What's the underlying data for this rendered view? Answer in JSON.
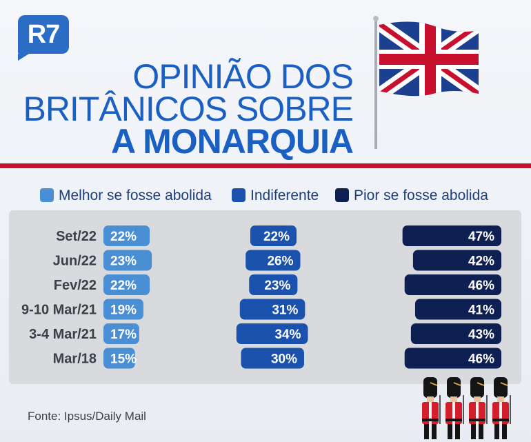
{
  "logo": {
    "text": "R7",
    "color": "#2b6cc4"
  },
  "title": {
    "line1": "OPINIÃO DOS",
    "line2": "BRITÂNICOS SOBRE",
    "line3": "A MONARQUIA",
    "color": "#1a5fc2"
  },
  "source": "Fonte: Ipsus/Daily Mail",
  "chart_data": {
    "type": "bar",
    "stacked": false,
    "orientation": "horizontal",
    "categories": [
      "Set/22",
      "Jun/22",
      "Fev/22",
      "9-10 Mar/21",
      "3-4 Mar/21",
      "Mar/18"
    ],
    "series": [
      {
        "name": "Melhor se fosse abolida",
        "color": "#4a8ed3",
        "values": [
          22,
          23,
          22,
          19,
          17,
          15
        ],
        "labels": [
          "22%",
          "23%",
          "22%",
          "19%",
          "17%",
          "15%"
        ]
      },
      {
        "name": "Indiferente",
        "color": "#1a52ad",
        "values": [
          22,
          26,
          23,
          31,
          34,
          30
        ],
        "labels": [
          "22%",
          "26%",
          "23%",
          "31%",
          "34%",
          "30%"
        ]
      },
      {
        "name": "Pior se fosse abolida",
        "color": "#0e1f52",
        "values": [
          47,
          42,
          46,
          41,
          43,
          46
        ],
        "labels": [
          "47%",
          "42%",
          "46%",
          "41%",
          "43%",
          "46%"
        ]
      }
    ],
    "legend": "top",
    "grid": false
  }
}
